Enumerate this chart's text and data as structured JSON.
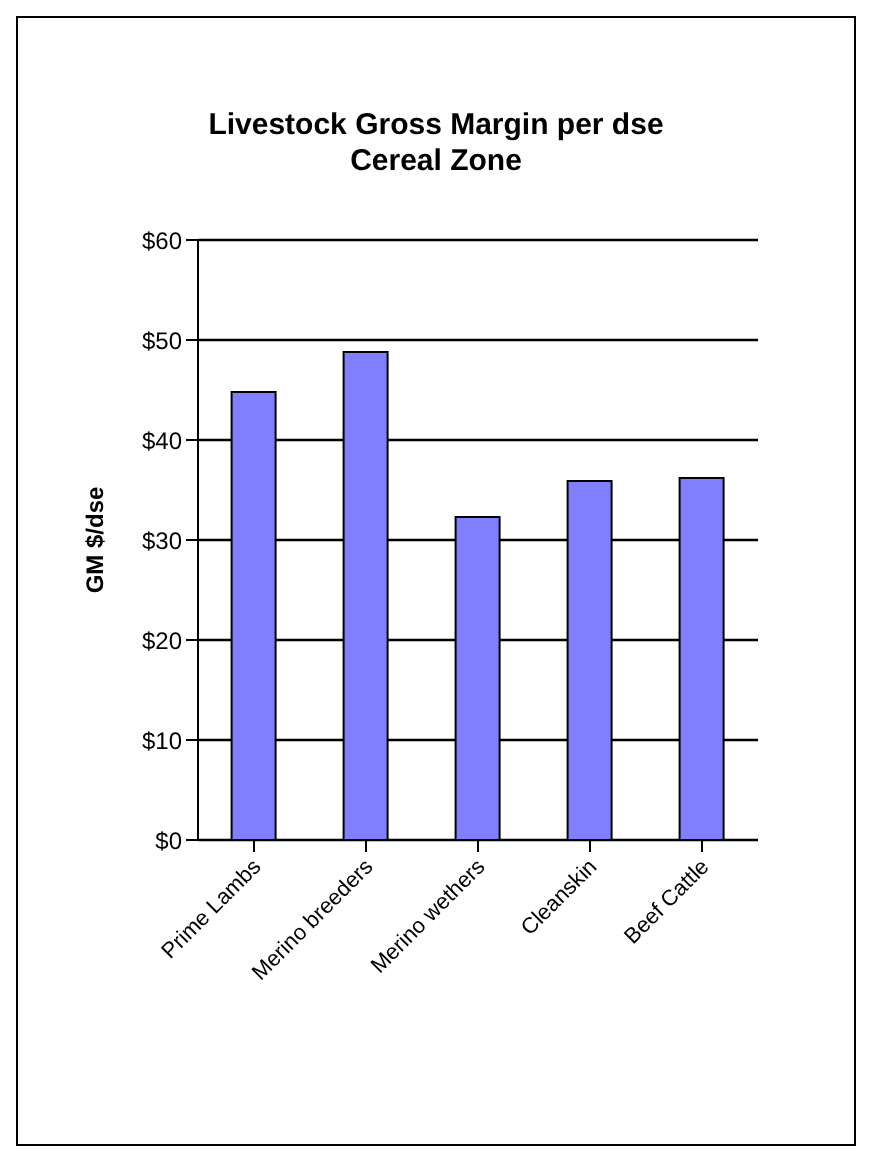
{
  "chart_data": {
    "type": "bar",
    "title": "Livestock Gross Margin per dse\nCereal Zone",
    "ylabel": "GM $/dse",
    "categories": [
      "Prime Lambs",
      "Merino breeders",
      "Merino wethers",
      "Cleanskin",
      "Beef Cattle"
    ],
    "values": [
      44.8,
      48.8,
      32.3,
      35.9,
      36.2
    ],
    "color": "#8080ff",
    "ylim": [
      0,
      60
    ],
    "yticks": [
      {
        "value": 0,
        "label": "$0"
      },
      {
        "value": 10,
        "label": "$10"
      },
      {
        "value": 20,
        "label": "$20"
      },
      {
        "value": 30,
        "label": "$30"
      },
      {
        "value": 40,
        "label": "$40"
      },
      {
        "value": 50,
        "label": "$50"
      },
      {
        "value": 60,
        "label": "$60"
      }
    ],
    "grid": "y",
    "legend": false
  }
}
